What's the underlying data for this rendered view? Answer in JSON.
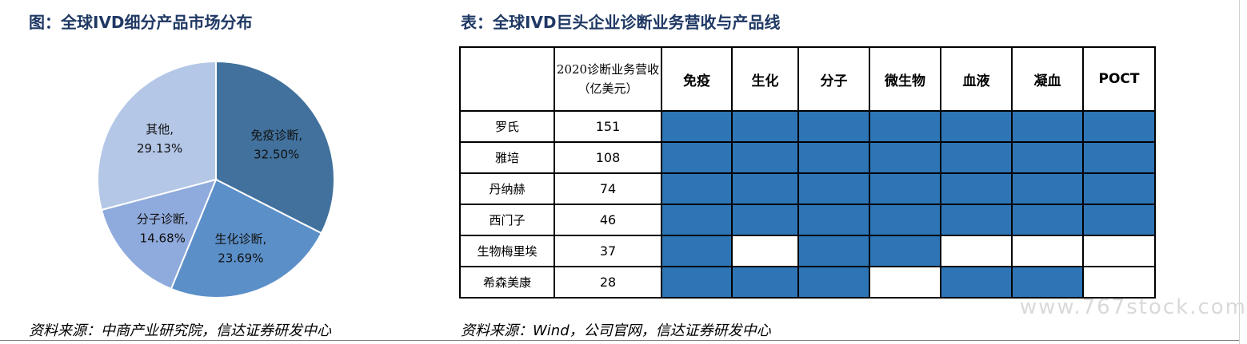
{
  "left_panel": {
    "title": "图：全球IVD细分产品市场分布",
    "source": "资料来源：中商产业研究院，信达证券研发中心"
  },
  "right_panel": {
    "title": "表：全球IVD巨头企业诊断业务营收与产品线",
    "source": "资料来源：Wind，公司官网，信达证券研发中心",
    "on_color": "#2e75b6"
  },
  "watermark": "www.767stock.com",
  "chart_data": [
    {
      "type": "pie",
      "title": "",
      "slices": [
        {
          "name": "免疫诊断,",
          "value": 32.5,
          "label": "32.50%",
          "color": "#41719c"
        },
        {
          "name": "生化诊断,",
          "value": 23.69,
          "label": "23.69%",
          "color": "#5b8fc8"
        },
        {
          "name": "分子诊断,",
          "value": 14.68,
          "label": "14.68%",
          "color": "#8faadc"
        },
        {
          "name": "其他,",
          "value": 29.13,
          "label": "29.13%",
          "color": "#b4c7e7"
        }
      ]
    },
    {
      "type": "table",
      "columns": [
        "",
        "2020诊断业务营收（亿美元）",
        "免疫",
        "生化",
        "分子",
        "微生物",
        "血液",
        "凝血",
        "POCT"
      ],
      "rows": [
        {
          "company": "罗氏",
          "revenue": "151",
          "lines": [
            1,
            1,
            1,
            1,
            1,
            1,
            1
          ]
        },
        {
          "company": "雅培",
          "revenue": "108",
          "lines": [
            1,
            1,
            1,
            1,
            1,
            1,
            1
          ]
        },
        {
          "company": "丹纳赫",
          "revenue": "74",
          "lines": [
            1,
            1,
            1,
            1,
            1,
            1,
            1
          ]
        },
        {
          "company": "西门子",
          "revenue": "46",
          "lines": [
            1,
            1,
            1,
            1,
            1,
            1,
            1
          ]
        },
        {
          "company": "生物梅里埃",
          "revenue": "37",
          "lines": [
            1,
            0,
            1,
            1,
            0,
            0,
            0
          ]
        },
        {
          "company": "希森美康",
          "revenue": "28",
          "lines": [
            1,
            1,
            1,
            0,
            1,
            1,
            0
          ]
        }
      ]
    }
  ]
}
